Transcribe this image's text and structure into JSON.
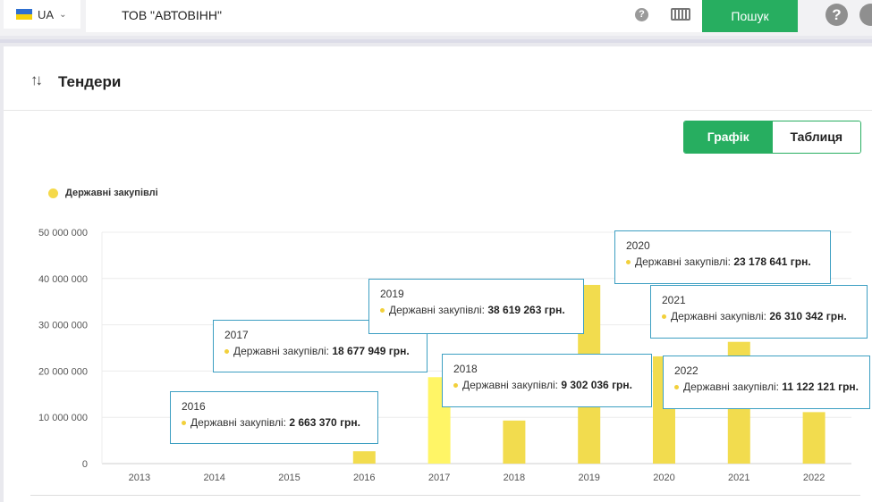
{
  "header": {
    "lang": "UA",
    "search_value": "ТОВ \"АВТОВІНН\"",
    "search_button": "Пошук",
    "help_glyph": "?"
  },
  "section": {
    "title": "Тендери",
    "view_chart": "Графік",
    "view_table": "Таблиця"
  },
  "chart_data": {
    "type": "bar",
    "categories": [
      "2013",
      "2014",
      "2015",
      "2016",
      "2017",
      "2018",
      "2019",
      "2020",
      "2021",
      "2022"
    ],
    "series": [
      {
        "name": "Державні закупівлі",
        "values": [
          0,
          0,
          0,
          2663370,
          18677949,
          9302036,
          38619263,
          23178641,
          26310342,
          11122121
        ]
      }
    ],
    "y_ticks": [
      "0",
      "10 000 000",
      "20 000 000",
      "30 000 000",
      "40 000 000",
      "50 000 000"
    ],
    "ylim": [
      0,
      50000000
    ],
    "legend_position": "top-left",
    "colors": {
      "bar": "#f2dc4e",
      "bar_highlight": "#fff566"
    }
  },
  "tooltips": [
    {
      "year": "2016",
      "label": "Державні закупівлі: ",
      "value": "2 663 370 грн."
    },
    {
      "year": "2017",
      "label": "Державні закупівлі: ",
      "value": "18 677 949 грн."
    },
    {
      "year": "2019",
      "label": "Державні закупівлі: ",
      "value": "38 619 263 грн."
    },
    {
      "year": "2018",
      "label": "Державні закупівлі: ",
      "value": "9 302 036 грн."
    },
    {
      "year": "2020",
      "label": "Державні закупівлі: ",
      "value": "23 178 641 грн."
    },
    {
      "year": "2021",
      "label": "Державні закупівлі: ",
      "value": "26 310 342 грн."
    },
    {
      "year": "2022",
      "label": "Державні закупівлі: ",
      "value": "11 122 121 грн."
    }
  ]
}
